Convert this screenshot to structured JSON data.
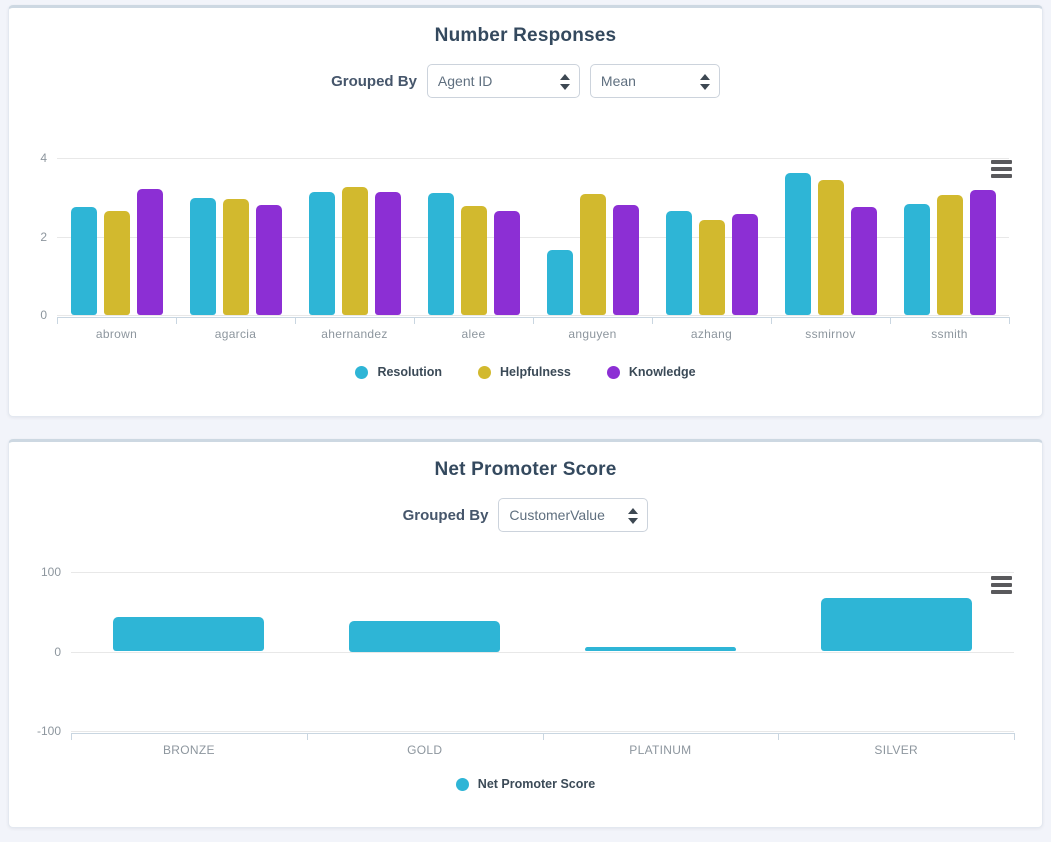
{
  "panels": [
    {
      "title": "Number Responses",
      "controls": {
        "label": "Grouped By",
        "selects": [
          {
            "value": "Agent ID"
          },
          {
            "value": "Mean"
          }
        ]
      }
    },
    {
      "title": "Net Promoter Score",
      "controls": {
        "label": "Grouped By",
        "selects": [
          {
            "value": "CustomerValue"
          }
        ]
      }
    }
  ],
  "icons": {
    "export_menu": "hamburger-menu",
    "select_arrows": "up-down-stepper-arrows"
  },
  "colors": {
    "teal": "#2eb5d6",
    "yellow": "#d2b92e",
    "purple": "#8c2fd4",
    "title_text": "#34495e",
    "axis_text": "#8d969e",
    "axis_line": "#c9d6e1",
    "grid_line": "#e8e8e8",
    "page_bg": "#f2f4fa",
    "panel_bg": "#ffffff",
    "panel_top_border": "#cdd8e2"
  },
  "chart_data": [
    {
      "type": "bar",
      "title": "Number Responses",
      "categories": [
        "abrown",
        "agarcia",
        "ahernandez",
        "alee",
        "anguyen",
        "azhang",
        "ssmirnov",
        "ssmith"
      ],
      "series": [
        {
          "name": "Resolution",
          "color": "#2eb5d6",
          "values": [
            2.76,
            2.97,
            3.14,
            3.11,
            1.65,
            2.66,
            3.62,
            2.82
          ]
        },
        {
          "name": "Helpfulness",
          "color": "#d2b92e",
          "values": [
            2.66,
            2.96,
            3.27,
            2.77,
            3.08,
            2.43,
            3.44,
            3.06
          ]
        },
        {
          "name": "Knowledge",
          "color": "#8c2fd4",
          "values": [
            3.2,
            2.8,
            3.13,
            2.66,
            2.81,
            2.58,
            2.76,
            3.19
          ]
        }
      ],
      "ylim": [
        0,
        4
      ],
      "yticks": [
        0,
        2,
        4
      ],
      "grid": true,
      "legend_position": "bottom"
    },
    {
      "type": "bar",
      "title": "Net Promoter Score",
      "categories": [
        "BRONZE",
        "GOLD",
        "PLATINUM",
        "SILVER"
      ],
      "series": [
        {
          "name": "Net Promoter Score",
          "color": "#2eb5d6",
          "values": [
            43,
            39,
            6,
            67
          ]
        }
      ],
      "ylim": [
        -100,
        100
      ],
      "yticks": [
        -100,
        0,
        100
      ],
      "grid": true,
      "legend_position": "bottom"
    }
  ]
}
